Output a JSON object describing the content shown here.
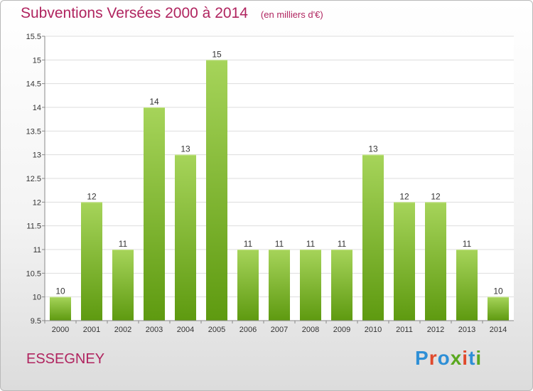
{
  "header": {
    "title": "Subventions Versées 2000 à 2014",
    "subtitle": "(en milliers d'€)"
  },
  "footer": {
    "place": "ESSEGNEY",
    "logo": "Proxiti",
    "logo_colors": [
      "#2e8fd6",
      "#e0492c",
      "#2e8fd6",
      "#5aa820",
      "#e0492c",
      "#2e8fd6",
      "#5aa820"
    ]
  },
  "colors": {
    "title": "#b0245f",
    "bar_top": "#a6d45a",
    "bar_bottom": "#5e9a10",
    "grid": "#dddddd",
    "axis": "#888888"
  },
  "chart_data": {
    "type": "bar",
    "categories": [
      "2000",
      "2001",
      "2002",
      "2003",
      "2004",
      "2005",
      "2006",
      "2007",
      "2008",
      "2009",
      "2010",
      "2011",
      "2012",
      "2013",
      "2014"
    ],
    "values": [
      10,
      12,
      11,
      14,
      13,
      15,
      11,
      11,
      11,
      11,
      13,
      12,
      12,
      11,
      10
    ],
    "data_labels": [
      "10",
      "12",
      "11",
      "14",
      "13",
      "15",
      "11",
      "11",
      "11",
      "11",
      "13",
      "12",
      "12",
      "11",
      "10"
    ],
    "ylim": [
      9.5,
      15.5
    ],
    "yticks": [
      9.5,
      10,
      10.5,
      11,
      11.5,
      12,
      12.5,
      13,
      13.5,
      14,
      14.5,
      15,
      15.5
    ],
    "ytick_labels": [
      "9.5",
      "10",
      "10.5",
      "11",
      "11.5",
      "12",
      "12.5",
      "13",
      "13.5",
      "14",
      "14.5",
      "15",
      "15.5"
    ],
    "grid": true,
    "legend": "none"
  }
}
